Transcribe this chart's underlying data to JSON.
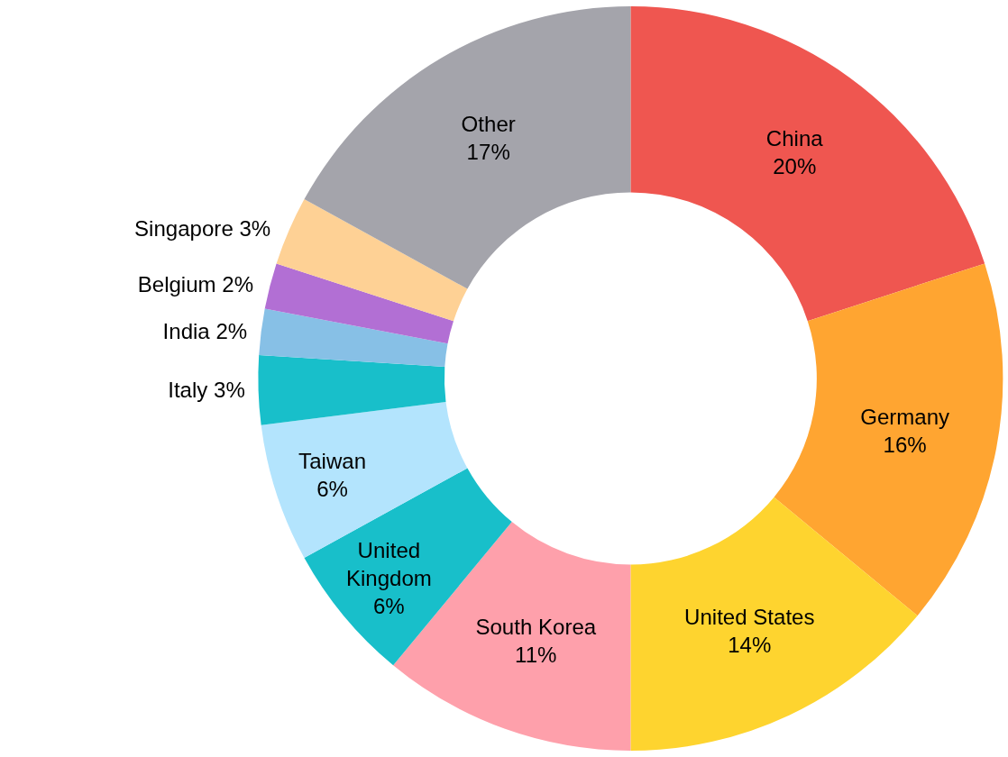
{
  "chart_data": {
    "type": "donut",
    "categories": [
      "China",
      "Germany",
      "United States",
      "South Korea",
      "United Kingdom",
      "Taiwan",
      "Italy",
      "India",
      "Belgium",
      "Singapore",
      "Other"
    ],
    "values": [
      20,
      16,
      14,
      11,
      6,
      6,
      3,
      2,
      2,
      3,
      17
    ],
    "colors": [
      "#ef5650",
      "#ffa531",
      "#fed42f",
      "#fea0ab",
      "#18bfca",
      "#b3e4fd",
      "#18bfca",
      "#87c0e6",
      "#b26fd4",
      "#fed195",
      "#a4a4ab"
    ],
    "value_labels": [
      "20%",
      "16%",
      "14%",
      "11%",
      "6%",
      "6%",
      "3%",
      "2%",
      "2%",
      "3%",
      "17%"
    ],
    "legend": false
  }
}
